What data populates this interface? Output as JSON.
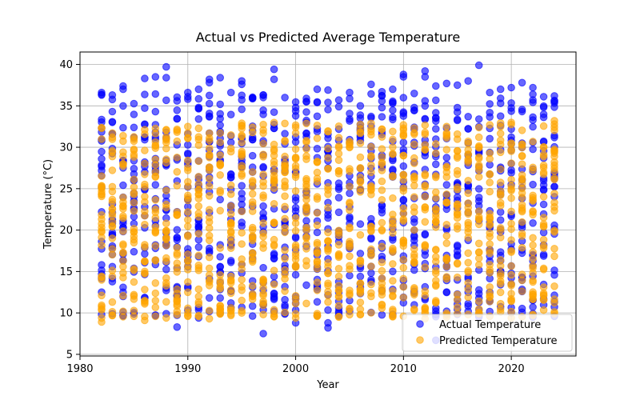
{
  "chart_data": {
    "type": "scatter",
    "title": "Actual vs Predicted Average Temperature",
    "xlabel": "Year",
    "ylabel": "Temperature (°C)",
    "xlim": [
      1980,
      2026
    ],
    "ylim": [
      4.8,
      41.5
    ],
    "xticks": [
      1980,
      1990,
      2000,
      2010,
      2020
    ],
    "yticks": [
      5,
      10,
      15,
      20,
      25,
      30,
      35,
      40
    ],
    "grid": true,
    "legend_position": "bottom-right",
    "series": [
      {
        "name": "Actual Temperature",
        "color": "#0000ff",
        "opacity": 0.6,
        "x_range": [
          1982,
          2024
        ],
        "typical_range": [
          9.5,
          36.5
        ],
        "points": [
          [
            1982,
            36.6
          ],
          [
            1982,
            36.3
          ],
          [
            1982,
            9.8
          ],
          [
            1983,
            36.3
          ],
          [
            1983,
            9.9
          ],
          [
            1984,
            37.4
          ],
          [
            1984,
            37.0
          ],
          [
            1984,
            9.7
          ],
          [
            1986,
            38.3
          ],
          [
            1987,
            38.5
          ],
          [
            1988,
            39.7
          ],
          [
            1988,
            38.4
          ],
          [
            1988,
            9.9
          ],
          [
            1989,
            8.3
          ],
          [
            1989,
            35.6
          ],
          [
            1990,
            36.6
          ],
          [
            1990,
            36.1
          ],
          [
            1991,
            37.0
          ],
          [
            1991,
            9.4
          ],
          [
            1992,
            38.2
          ],
          [
            1992,
            37.8
          ],
          [
            1993,
            38.4
          ],
          [
            1993,
            10.0
          ],
          [
            1994,
            36.6
          ],
          [
            1995,
            38.0
          ],
          [
            1995,
            37.6
          ],
          [
            1996,
            35.9
          ],
          [
            1997,
            7.5
          ],
          [
            1997,
            36.3
          ],
          [
            1998,
            39.4
          ],
          [
            1998,
            38.2
          ],
          [
            1999,
            36.0
          ],
          [
            2000,
            8.8
          ],
          [
            2001,
            35.9
          ],
          [
            2002,
            37.0
          ],
          [
            2003,
            36.9
          ],
          [
            2003,
            8.2
          ],
          [
            2003,
            8.8
          ],
          [
            2004,
            35.7
          ],
          [
            2005,
            36.6
          ],
          [
            2006,
            35.0
          ],
          [
            2007,
            37.6
          ],
          [
            2008,
            36.7
          ],
          [
            2009,
            37.0
          ],
          [
            2010,
            38.8
          ],
          [
            2010,
            38.5
          ],
          [
            2011,
            36.5
          ],
          [
            2012,
            39.2
          ],
          [
            2012,
            38.5
          ],
          [
            2013,
            6.7
          ],
          [
            2013,
            37.4
          ],
          [
            2014,
            37.7
          ],
          [
            2015,
            37.5
          ],
          [
            2016,
            38.0
          ],
          [
            2017,
            39.9
          ],
          [
            2018,
            36.6
          ],
          [
            2019,
            37.0
          ],
          [
            2019,
            35.3
          ],
          [
            2020,
            37.2
          ],
          [
            2021,
            37.8
          ],
          [
            2022,
            37.2
          ],
          [
            2022,
            9.5
          ],
          [
            2023,
            36.1
          ],
          [
            2024,
            36.2
          ],
          [
            2024,
            9.6
          ]
        ]
      },
      {
        "name": "Predicted Temperature",
        "color": "#ffa500",
        "opacity": 0.6,
        "x_range": [
          1982,
          2024
        ],
        "typical_range": [
          9.5,
          33
        ],
        "points": [
          [
            1982,
            8.9
          ],
          [
            1982,
            9.4
          ],
          [
            1982,
            10.5
          ],
          [
            1983,
            9.7
          ],
          [
            1985,
            9.6
          ],
          [
            1986,
            9.1
          ],
          [
            1987,
            9.6
          ],
          [
            1988,
            9.4
          ],
          [
            1989,
            9.8
          ],
          [
            1990,
            9.6
          ],
          [
            1992,
            9.3
          ],
          [
            1994,
            9.7
          ],
          [
            1995,
            10.0
          ],
          [
            1997,
            9.8
          ],
          [
            1998,
            9.6
          ],
          [
            2000,
            9.4
          ],
          [
            2002,
            9.7
          ],
          [
            2004,
            9.5
          ],
          [
            2006,
            9.8
          ],
          [
            2010,
            9.6
          ],
          [
            2012,
            9.3
          ],
          [
            2014,
            9.5
          ],
          [
            2016,
            9.8
          ],
          [
            2018,
            9.6
          ],
          [
            2020,
            9.4
          ],
          [
            2022,
            9.7
          ],
          [
            2024,
            9.9
          ],
          [
            1982,
            32.3
          ],
          [
            1990,
            32.5
          ],
          [
            2000,
            32.4
          ],
          [
            2010,
            32.7
          ],
          [
            2020,
            33.0
          ],
          [
            2024,
            33.2
          ]
        ]
      }
    ]
  }
}
